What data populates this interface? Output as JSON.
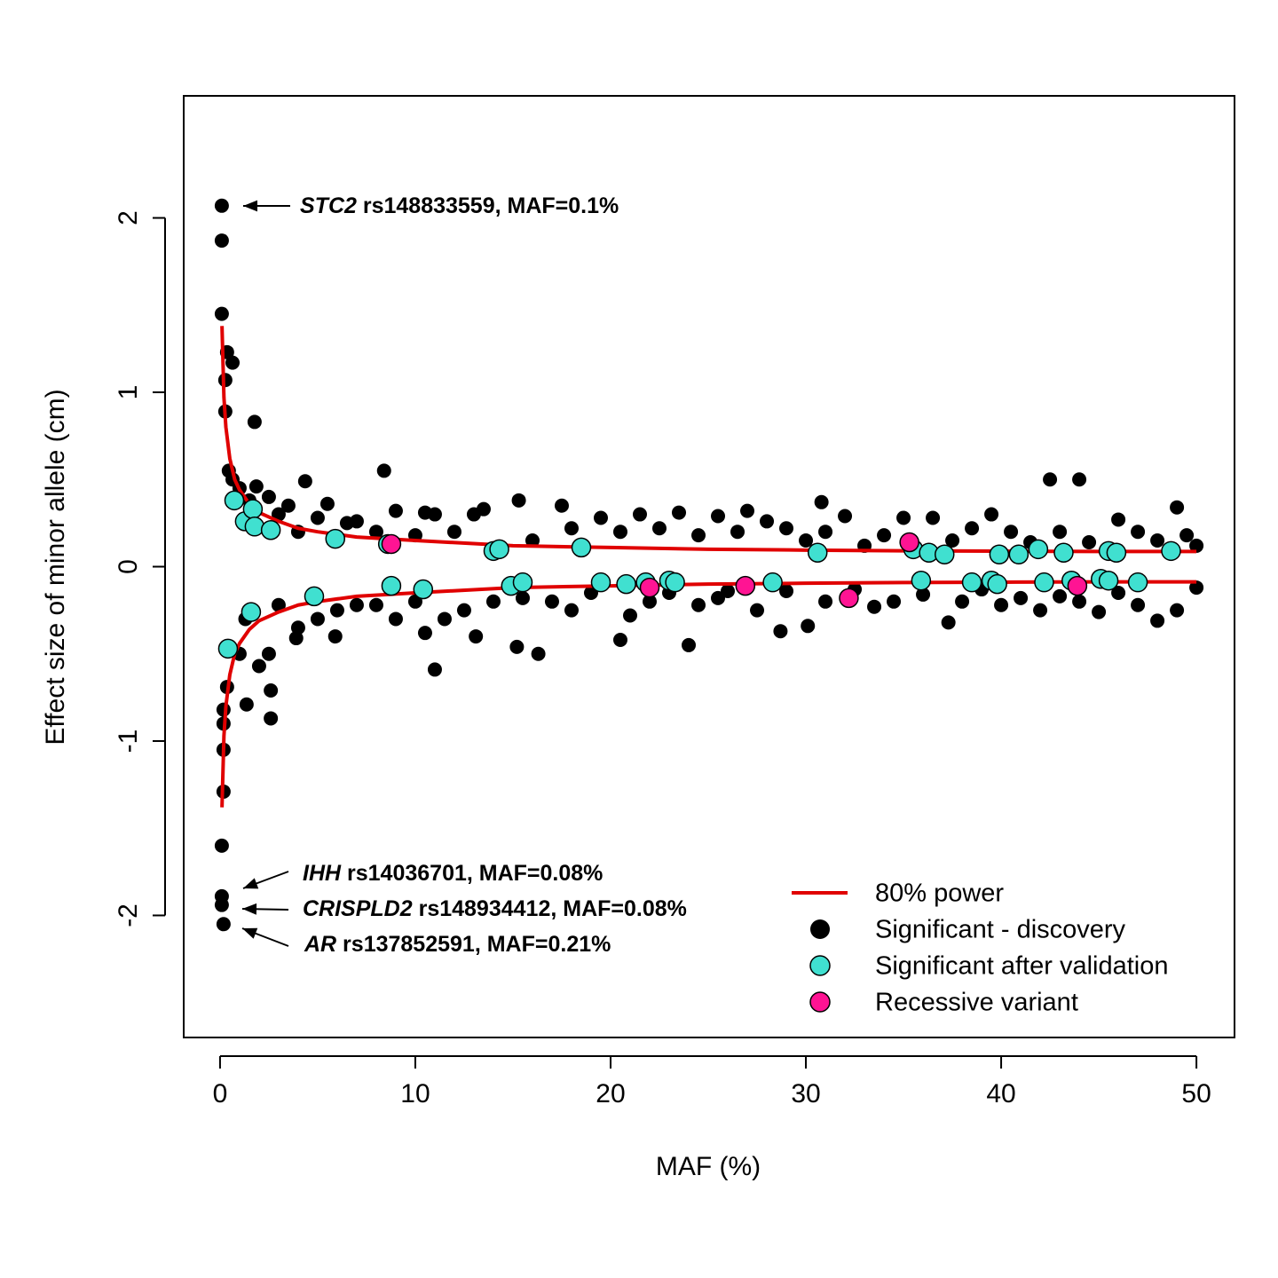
{
  "chart_data": {
    "type": "scatter",
    "x_label": "MAF (%)",
    "y_label": "Effect size of minor allele (cm)",
    "xlim": [
      -1.86,
      51.95
    ],
    "ylim": [
      -2.7,
      2.7
    ],
    "xticks": [
      0,
      10,
      20,
      30,
      40,
      50
    ],
    "yticks": [
      -2,
      -1,
      0,
      1,
      2
    ],
    "legend": "bottom-right",
    "annotations": [
      {
        "gene": "STC2",
        "text": " rs148833559, MAF=0.1%"
      },
      {
        "gene": "IHH",
        "text": " rs14036701, MAF=0.08%"
      },
      {
        "gene": "CRISPLD2",
        "text": " rs148934412, MAF=0.08%"
      },
      {
        "gene": "AR",
        "text": " rs137852591, MAF=0.21%"
      }
    ],
    "series": [
      {
        "name": "80% power",
        "type": "line",
        "color": "#e00000",
        "x": [
          0.1,
          0.2,
          0.3,
          0.5,
          0.75,
          1,
          1.5,
          2,
          3,
          4,
          5,
          7,
          10,
          15,
          20,
          25,
          30,
          35,
          40,
          45,
          50
        ],
        "values": [
          1.38,
          0.97,
          0.8,
          0.62,
          0.5,
          0.44,
          0.36,
          0.31,
          0.26,
          0.22,
          0.2,
          0.17,
          0.15,
          0.12,
          0.11,
          0.1,
          0.095,
          0.091,
          0.089,
          0.087,
          0.087
        ],
        "values_lower": [
          -1.38,
          -0.97,
          -0.8,
          -0.62,
          -0.5,
          -0.44,
          -0.36,
          -0.31,
          -0.26,
          -0.22,
          -0.2,
          -0.17,
          -0.15,
          -0.12,
          -0.11,
          -0.1,
          -0.095,
          -0.091,
          -0.089,
          -0.087,
          -0.087
        ]
      },
      {
        "name": "Significant - discovery",
        "type": "scatter",
        "color": "#000000",
        "x": [
          0.09,
          0.09,
          0.09,
          0.36,
          0.27,
          0.64,
          0.27,
          1.77,
          0.45,
          0.64,
          1.86,
          4.36,
          8.4,
          42.5,
          44.0,
          15.3,
          30.8,
          49.0,
          0.09,
          0.09,
          0.09,
          0.18,
          0.18,
          0.18,
          0.18,
          0.18,
          0.36,
          2.6,
          2.6,
          1.36,
          11.0,
          16.3,
          15.2,
          24.0,
          20.5,
          37.3,
          28.7,
          30.1,
          10.5,
          13.1,
          5.9,
          3.9,
          1,
          1.5,
          2.5,
          3,
          3.5,
          4,
          5,
          5.5,
          6.5,
          7,
          8,
          9,
          10,
          10.5,
          11,
          12,
          13,
          13.5,
          16,
          17.5,
          18,
          19.5,
          20.5,
          21.5,
          22.5,
          23.5,
          24.5,
          25.5,
          26.5,
          27,
          28,
          29,
          30,
          31,
          32,
          33,
          34,
          35,
          36.5,
          37.5,
          38.5,
          39.5,
          40.5,
          41.5,
          43,
          44.5,
          46,
          47,
          48,
          49.5,
          50,
          1,
          1.3,
          2,
          2.5,
          3,
          4,
          5,
          6,
          7,
          8,
          9,
          10,
          11.5,
          12.5,
          14,
          15.5,
          17,
          18,
          19,
          21,
          22,
          23,
          24.5,
          25.5,
          26,
          27.5,
          29,
          31,
          32.5,
          33.5,
          34.5,
          36,
          38,
          39,
          40,
          41,
          42,
          43,
          44,
          45,
          46,
          47,
          48,
          49,
          50
        ],
        "values": [
          2.07,
          1.87,
          1.45,
          1.23,
          1.07,
          1.17,
          0.89,
          0.83,
          0.55,
          0.5,
          0.46,
          0.49,
          0.55,
          0.5,
          0.5,
          0.38,
          0.37,
          0.34,
          -1.6,
          -1.89,
          -1.94,
          -2.05,
          -1.29,
          -1.05,
          -0.9,
          -0.82,
          -0.69,
          -0.87,
          -0.71,
          -0.79,
          -0.59,
          -0.5,
          -0.46,
          -0.45,
          -0.42,
          -0.32,
          -0.37,
          -0.34,
          -0.38,
          -0.4,
          -0.4,
          -0.41,
          0.45,
          0.38,
          0.4,
          0.3,
          0.35,
          0.2,
          0.28,
          0.36,
          0.25,
          0.26,
          0.2,
          0.32,
          0.18,
          0.31,
          0.3,
          0.2,
          0.3,
          0.33,
          0.15,
          0.35,
          0.22,
          0.28,
          0.2,
          0.3,
          0.22,
          0.31,
          0.18,
          0.29,
          0.2,
          0.32,
          0.26,
          0.22,
          0.15,
          0.2,
          0.29,
          0.12,
          0.18,
          0.28,
          0.28,
          0.15,
          0.22,
          0.3,
          0.2,
          0.14,
          0.2,
          0.14,
          0.27,
          0.2,
          0.15,
          0.18,
          0.12,
          -0.5,
          -0.3,
          -0.57,
          -0.5,
          -0.22,
          -0.35,
          -0.3,
          -0.25,
          -0.22,
          -0.22,
          -0.3,
          -0.2,
          -0.3,
          -0.25,
          -0.2,
          -0.18,
          -0.2,
          -0.25,
          -0.15,
          -0.28,
          -0.2,
          -0.15,
          -0.22,
          -0.18,
          -0.14,
          -0.25,
          -0.14,
          -0.2,
          -0.13,
          -0.23,
          -0.2,
          -0.16,
          -0.2,
          -0.13,
          -0.22,
          -0.18,
          -0.25,
          -0.17,
          -0.2,
          -0.26,
          -0.15,
          -0.22,
          -0.31,
          -0.25,
          -0.12
        ]
      },
      {
        "name": "Significant after validation",
        "type": "scatter",
        "color": "#40e0d0",
        "x": [
          0.73,
          1.27,
          1.68,
          1.77,
          2.6,
          5.9,
          8.6,
          14.0,
          14.3,
          18.5,
          30.6,
          35.5,
          36.3,
          37.1,
          39.9,
          40.9,
          41.9,
          43.2,
          45.5,
          45.9,
          48.7,
          0.41,
          1.59,
          4.82,
          8.77,
          10.4,
          14.9,
          15.5,
          19.5,
          20.8,
          21.8,
          23.0,
          23.3,
          28.3,
          35.9,
          38.5,
          39.5,
          39.8,
          42.2,
          43.6,
          45.1,
          45.5,
          47.0
        ],
        "values": [
          0.38,
          0.26,
          0.33,
          0.23,
          0.21,
          0.16,
          0.13,
          0.09,
          0.1,
          0.11,
          0.08,
          0.1,
          0.08,
          0.07,
          0.07,
          0.07,
          0.1,
          0.08,
          0.09,
          0.08,
          0.09,
          -0.47,
          -0.26,
          -0.17,
          -0.11,
          -0.13,
          -0.11,
          -0.09,
          -0.09,
          -0.1,
          -0.09,
          -0.08,
          -0.09,
          -0.09,
          -0.08,
          -0.09,
          -0.08,
          -0.1,
          -0.09,
          -0.08,
          -0.07,
          -0.08,
          -0.09
        ]
      },
      {
        "name": "Recessive variant",
        "type": "scatter",
        "color": "#ff1493",
        "x": [
          8.77,
          35.3,
          22.0,
          26.9,
          32.2,
          43.9
        ],
        "values": [
          0.13,
          0.14,
          -0.12,
          -0.11,
          -0.18,
          -0.11
        ]
      }
    ]
  }
}
